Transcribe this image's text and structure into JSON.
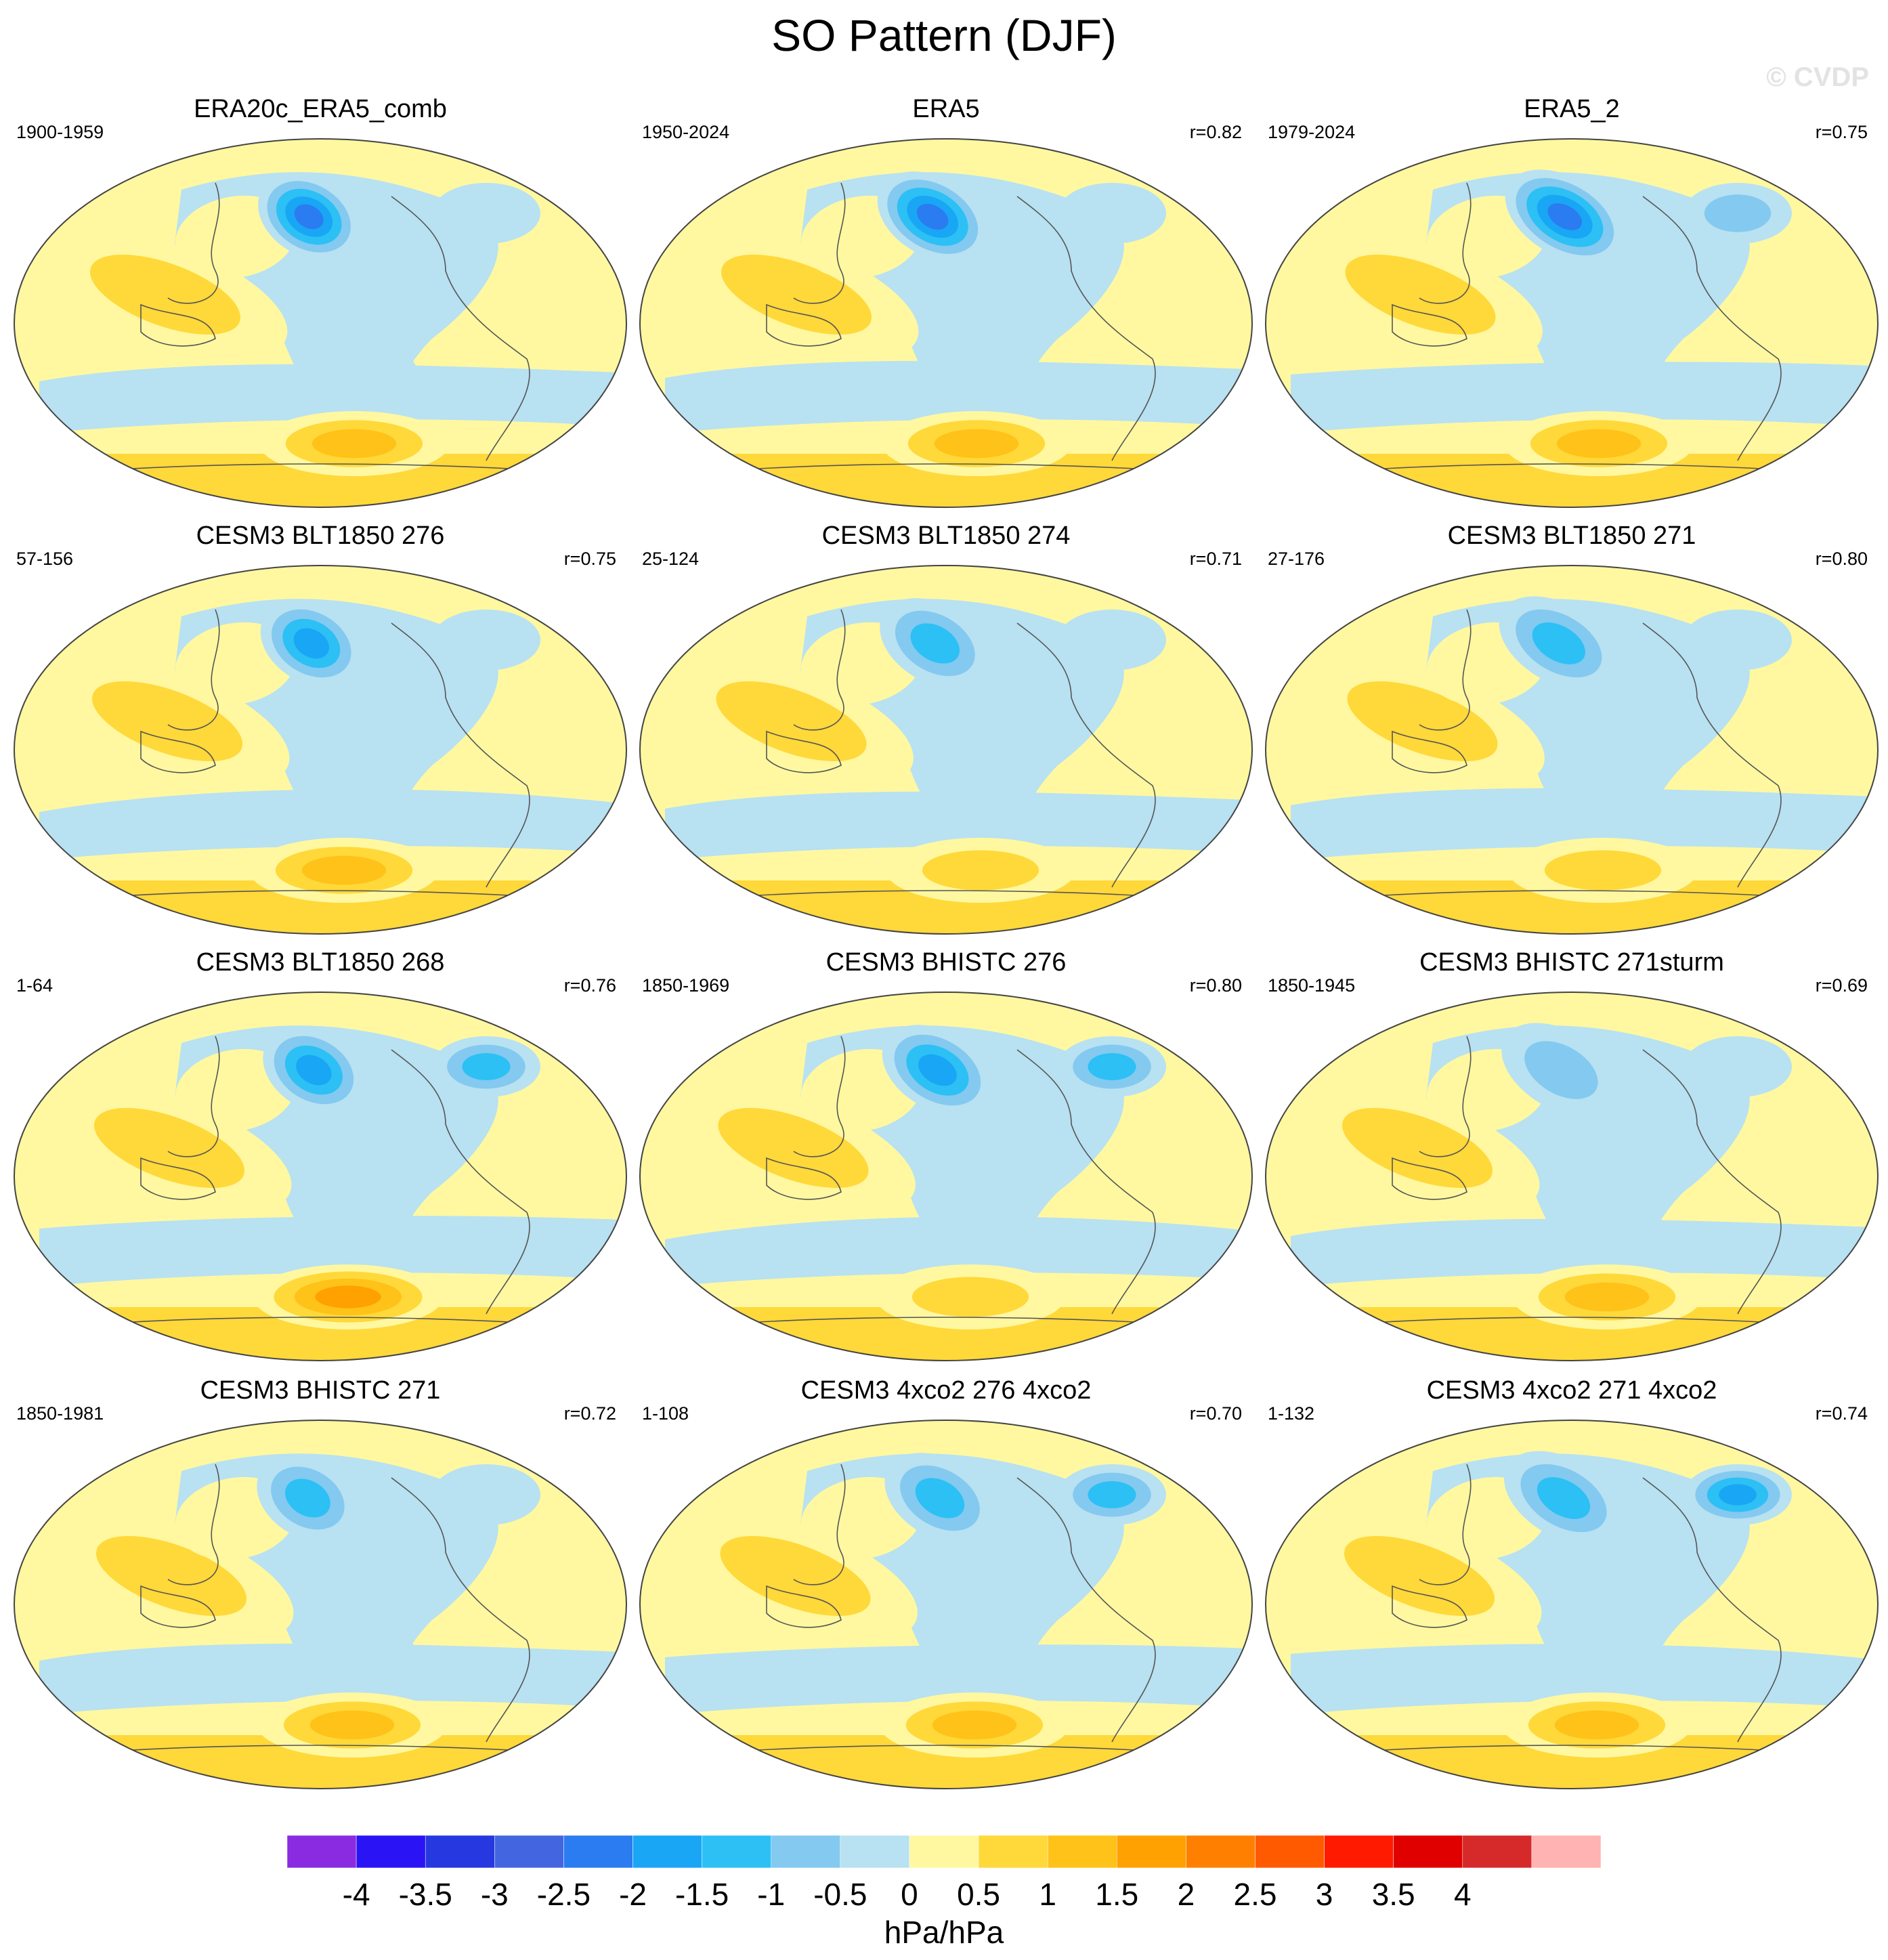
{
  "title": "SO Pattern (DJF)",
  "watermark": "© CVDP",
  "units": "hPa/hPa",
  "colors": {
    "land_outline": "#555555",
    "map_border": "#444444",
    "scale": [
      "#8a2be2",
      "#2a14f5",
      "#2639e0",
      "#4366e0",
      "#2b7cf0",
      "#18a6f5",
      "#2cc0f5",
      "#84c9ef",
      "#b8e1f2",
      "#fff8a0",
      "#ffd83a",
      "#ffc219",
      "#ffa100",
      "#ff8000",
      "#ff5a00",
      "#ff1a00",
      "#e00000",
      "#d62a2a",
      "#ffb3b3"
    ]
  },
  "chart_data": {
    "type": "heatmap",
    "projection": "robinson-global",
    "colorbar": {
      "ticks": [
        "-4",
        "-3.5",
        "-3",
        "-2.5",
        "-2",
        "-1.5",
        "-1",
        "-0.5",
        "0",
        "0.5",
        "1",
        "1.5",
        "2",
        "2.5",
        "3",
        "3.5",
        "4"
      ],
      "range": [
        -4.5,
        4.5
      ],
      "step": 0.5
    },
    "panels": [
      {
        "title": "ERA20c_ERA5_comb",
        "years": "1900-1959",
        "corr": "",
        "aleutian_low": -2.6,
        "indo_pacific": 1.0,
        "south_pacific_high": 1.7,
        "north_atlantic": -0.5,
        "style": 0
      },
      {
        "title": "ERA5",
        "years": "1950-2024",
        "corr": "r=0.82",
        "aleutian_low": -2.6,
        "indo_pacific": 1.0,
        "south_pacific_high": 1.9,
        "north_atlantic": -0.7,
        "style": 1
      },
      {
        "title": "ERA5_2",
        "years": "1979-2024",
        "corr": "r=0.75",
        "aleutian_low": -2.9,
        "indo_pacific": 1.0,
        "south_pacific_high": 1.6,
        "north_atlantic": -1.0,
        "style": 2
      },
      {
        "title": "CESM3 BLT1850 276",
        "years": "57-156",
        "corr": "r=0.75",
        "aleutian_low": -2.1,
        "indo_pacific": 1.1,
        "south_pacific_high": 1.6,
        "north_atlantic": -0.8,
        "style": 3
      },
      {
        "title": "CESM3 BLT1850 274",
        "years": "25-124",
        "corr": "r=0.71",
        "aleutian_low": -1.8,
        "indo_pacific": 1.1,
        "south_pacific_high": 1.4,
        "north_atlantic": -0.8,
        "style": 4
      },
      {
        "title": "CESM3 BLT1850 271",
        "years": "27-176",
        "corr": "r=0.80",
        "aleutian_low": -1.7,
        "indo_pacific": 1.1,
        "south_pacific_high": 1.1,
        "north_atlantic": -0.8,
        "style": 5
      },
      {
        "title": "CESM3 BLT1850 268",
        "years": "1-64",
        "corr": "r=0.76",
        "aleutian_low": -2.3,
        "indo_pacific": 1.1,
        "south_pacific_high": 2.2,
        "north_atlantic": -1.6,
        "style": 6
      },
      {
        "title": "CESM3 BHISTC 276",
        "years": "1850-1969",
        "corr": "r=0.80",
        "aleutian_low": -2.0,
        "indo_pacific": 1.1,
        "south_pacific_high": 1.3,
        "north_atlantic": -1.5,
        "style": 7
      },
      {
        "title": "CESM3 BHISTC 271sturm",
        "years": "1850-1945",
        "corr": "r=0.69",
        "aleutian_low": -1.2,
        "indo_pacific": 1.1,
        "south_pacific_high": 1.5,
        "north_atlantic": -0.8,
        "style": 8
      },
      {
        "title": "CESM3 BHISTC 271",
        "years": "1850-1981",
        "corr": "r=0.72",
        "aleutian_low": -1.6,
        "indo_pacific": 1.0,
        "south_pacific_high": 1.5,
        "north_atlantic": -0.6,
        "style": 9
      },
      {
        "title": "CESM3 4xco2 276 4xco2",
        "years": "1-108",
        "corr": "r=0.70",
        "aleutian_low": -1.6,
        "indo_pacific": 1.0,
        "south_pacific_high": 1.6,
        "north_atlantic": -1.7,
        "style": 10
      },
      {
        "title": "CESM3 4xco2 271 4xco2",
        "years": "1-132",
        "corr": "r=0.74",
        "aleutian_low": -1.6,
        "indo_pacific": 1.0,
        "south_pacific_high": 1.5,
        "north_atlantic": -2.0,
        "style": 11
      }
    ]
  }
}
